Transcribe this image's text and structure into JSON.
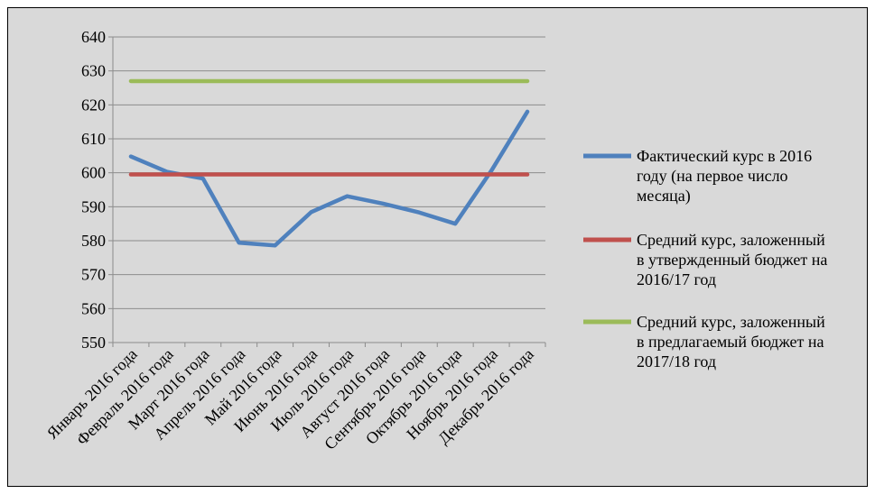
{
  "chart_data": {
    "type": "line",
    "categories": [
      "Январь 2016 года",
      "Февраль 2016 года",
      "Март 2016 года",
      "Апрель 2016 года",
      "Май 2016 года",
      "Июнь 2016 года",
      "Июль 2016 года",
      "Август 2016 года",
      "Сентябрь 2016 года",
      "Октябрь 2016 года",
      "Ноябрь 2016 года",
      "Декабрь 2016 года"
    ],
    "y_ticks": [
      "640",
      "630",
      "620",
      "610",
      "600",
      "590",
      "580",
      "570",
      "560",
      "550"
    ],
    "ylim": [
      550,
      640
    ],
    "grid": true,
    "legend_position": "right",
    "series": [
      {
        "name_lines": [
          "Фактический курс в 2016",
          "году (на первое число",
          "месяца)"
        ],
        "color": "#4f81bd",
        "values": [
          604.8,
          600.3,
          598.3,
          579.4,
          578.6,
          588.4,
          593.1,
          590.9,
          588.3,
          585.0,
          600.6,
          618.0
        ]
      },
      {
        "name_lines": [
          "Средний курс, заложенный",
          "в утвержденный бюджет на",
          "2016/17 год"
        ],
        "color": "#c0504d",
        "values": [
          599.5,
          599.5,
          599.5,
          599.5,
          599.5,
          599.5,
          599.5,
          599.5,
          599.5,
          599.5,
          599.5,
          599.5
        ]
      },
      {
        "name_lines": [
          "Средний курс, заложенный",
          "в предлагаемый бюджет на",
          "2017/18 год"
        ],
        "color": "#9bbb59",
        "values": [
          627.0,
          627.0,
          627.0,
          627.0,
          627.0,
          627.0,
          627.0,
          627.0,
          627.0,
          627.0,
          627.0,
          627.0
        ]
      }
    ]
  }
}
